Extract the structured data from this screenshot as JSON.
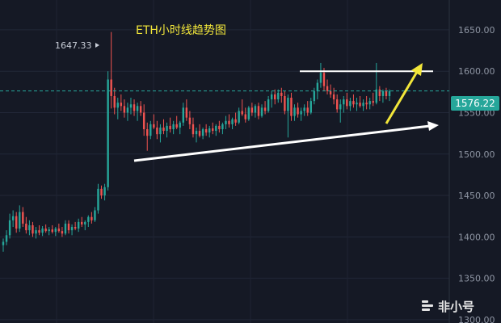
{
  "chart_data": {
    "type": "candlestick",
    "title": "ETH小时线趋势图",
    "y_ticks": [
      "1650.00",
      "1600.00",
      "1550.00",
      "1500.00",
      "1450.00",
      "1400.00",
      "1350.00",
      "1300.00"
    ],
    "ylim": [
      1296,
      1686
    ],
    "current_price_label": "1576.22",
    "current_price": 1576.22,
    "high_label": "1647.33",
    "high_value": 1647.33,
    "up_color": "#26a69a",
    "down_color": "#ef5350",
    "candles": [
      [
        1390,
        1398,
        1382,
        1394
      ],
      [
        1394,
        1408,
        1390,
        1402
      ],
      [
        1402,
        1428,
        1398,
        1420
      ],
      [
        1420,
        1432,
        1412,
        1425
      ],
      [
        1425,
        1430,
        1405,
        1410
      ],
      [
        1410,
        1438,
        1406,
        1430
      ],
      [
        1430,
        1436,
        1412,
        1416
      ],
      [
        1416,
        1424,
        1404,
        1408
      ],
      [
        1408,
        1420,
        1402,
        1414
      ],
      [
        1414,
        1418,
        1400,
        1404
      ],
      [
        1404,
        1412,
        1398,
        1408
      ],
      [
        1408,
        1414,
        1402,
        1405
      ],
      [
        1405,
        1413,
        1401,
        1410
      ],
      [
        1410,
        1415,
        1405,
        1407
      ],
      [
        1407,
        1412,
        1402,
        1409
      ],
      [
        1409,
        1414,
        1404,
        1406
      ],
      [
        1406,
        1412,
        1401,
        1410
      ],
      [
        1410,
        1416,
        1405,
        1407
      ],
      [
        1407,
        1412,
        1400,
        1404
      ],
      [
        1404,
        1420,
        1402,
        1416
      ],
      [
        1416,
        1420,
        1404,
        1408
      ],
      [
        1408,
        1415,
        1402,
        1412
      ],
      [
        1412,
        1418,
        1408,
        1410
      ],
      [
        1410,
        1422,
        1406,
        1418
      ],
      [
        1418,
        1424,
        1412,
        1415
      ],
      [
        1415,
        1420,
        1408,
        1418
      ],
      [
        1418,
        1426,
        1412,
        1424
      ],
      [
        1424,
        1430,
        1416,
        1420
      ],
      [
        1420,
        1436,
        1418,
        1432
      ],
      [
        1432,
        1464,
        1428,
        1458
      ],
      [
        1458,
        1462,
        1446,
        1450
      ],
      [
        1450,
        1464,
        1444,
        1460
      ],
      [
        1460,
        1600,
        1456,
        1590
      ],
      [
        1590,
        1647.33,
        1555,
        1570
      ],
      [
        1570,
        1580,
        1548,
        1556
      ],
      [
        1556,
        1568,
        1542,
        1562
      ],
      [
        1562,
        1572,
        1552,
        1558
      ],
      [
        1558,
        1566,
        1544,
        1550
      ],
      [
        1550,
        1562,
        1540,
        1556
      ],
      [
        1556,
        1568,
        1548,
        1560
      ],
      [
        1560,
        1566,
        1546,
        1552
      ],
      [
        1552,
        1562,
        1540,
        1558
      ],
      [
        1558,
        1564,
        1546,
        1550
      ],
      [
        1550,
        1560,
        1522,
        1530
      ],
      [
        1530,
        1538,
        1504,
        1522
      ],
      [
        1522,
        1540,
        1518,
        1536
      ],
      [
        1536,
        1548,
        1530,
        1532
      ],
      [
        1532,
        1540,
        1518,
        1524
      ],
      [
        1524,
        1536,
        1514,
        1532
      ],
      [
        1532,
        1542,
        1524,
        1528
      ],
      [
        1528,
        1538,
        1520,
        1534
      ],
      [
        1534,
        1544,
        1526,
        1530
      ],
      [
        1530,
        1540,
        1524,
        1536
      ],
      [
        1536,
        1546,
        1530,
        1532
      ],
      [
        1532,
        1540,
        1524,
        1538
      ],
      [
        1538,
        1562,
        1534,
        1556
      ],
      [
        1556,
        1566,
        1540,
        1544
      ],
      [
        1544,
        1552,
        1530,
        1536
      ],
      [
        1536,
        1544,
        1520,
        1524
      ],
      [
        1524,
        1532,
        1514,
        1528
      ],
      [
        1528,
        1536,
        1520,
        1522
      ],
      [
        1522,
        1532,
        1518,
        1530
      ],
      [
        1530,
        1536,
        1522,
        1526
      ],
      [
        1526,
        1534,
        1520,
        1531
      ],
      [
        1531,
        1538,
        1524,
        1528
      ],
      [
        1528,
        1536,
        1522,
        1534
      ],
      [
        1534,
        1540,
        1526,
        1530
      ],
      [
        1530,
        1538,
        1524,
        1536
      ],
      [
        1536,
        1546,
        1530,
        1540
      ],
      [
        1540,
        1548,
        1532,
        1536
      ],
      [
        1536,
        1544,
        1530,
        1542
      ],
      [
        1542,
        1550,
        1534,
        1538
      ],
      [
        1538,
        1556,
        1536,
        1552
      ],
      [
        1552,
        1566,
        1546,
        1548
      ],
      [
        1548,
        1556,
        1538,
        1542
      ],
      [
        1542,
        1558,
        1540,
        1556
      ],
      [
        1556,
        1562,
        1546,
        1550
      ],
      [
        1550,
        1560,
        1544,
        1558
      ],
      [
        1558,
        1562,
        1542,
        1546
      ],
      [
        1546,
        1560,
        1544,
        1556
      ],
      [
        1556,
        1564,
        1548,
        1552
      ],
      [
        1552,
        1570,
        1550,
        1566
      ],
      [
        1566,
        1576,
        1556,
        1572
      ],
      [
        1572,
        1578,
        1560,
        1566
      ],
      [
        1566,
        1578,
        1562,
        1574
      ],
      [
        1574,
        1580,
        1562,
        1570
      ],
      [
        1570,
        1576,
        1548,
        1552
      ],
      [
        1552,
        1572,
        1520,
        1568
      ],
      [
        1568,
        1574,
        1540,
        1546
      ],
      [
        1546,
        1560,
        1540,
        1556
      ],
      [
        1556,
        1562,
        1544,
        1548
      ],
      [
        1548,
        1556,
        1540,
        1552
      ],
      [
        1552,
        1560,
        1546,
        1556
      ],
      [
        1556,
        1564,
        1546,
        1550
      ],
      [
        1550,
        1568,
        1548,
        1564
      ],
      [
        1564,
        1580,
        1560,
        1576
      ],
      [
        1576,
        1590,
        1566,
        1586
      ],
      [
        1586,
        1610,
        1580,
        1598
      ],
      [
        1598,
        1604,
        1576,
        1582
      ],
      [
        1582,
        1590,
        1572,
        1576
      ],
      [
        1576,
        1584,
        1568,
        1572
      ],
      [
        1572,
        1580,
        1560,
        1566
      ],
      [
        1566,
        1572,
        1550,
        1554
      ],
      [
        1554,
        1566,
        1538,
        1560
      ],
      [
        1560,
        1570,
        1550,
        1566
      ],
      [
        1566,
        1574,
        1554,
        1558
      ],
      [
        1558,
        1568,
        1552,
        1564
      ],
      [
        1564,
        1572,
        1556,
        1560
      ],
      [
        1560,
        1568,
        1552,
        1562
      ],
      [
        1562,
        1570,
        1556,
        1558
      ],
      [
        1558,
        1566,
        1552,
        1562
      ],
      [
        1562,
        1570,
        1554,
        1560
      ],
      [
        1560,
        1568,
        1554,
        1564
      ],
      [
        1564,
        1574,
        1558,
        1562
      ],
      [
        1562,
        1610,
        1560,
        1578
      ],
      [
        1578,
        1582,
        1564,
        1570
      ],
      [
        1570,
        1578,
        1562,
        1576
      ],
      [
        1576,
        1580,
        1566,
        1570
      ],
      [
        1570,
        1578,
        1564,
        1576
      ]
    ]
  }
}
